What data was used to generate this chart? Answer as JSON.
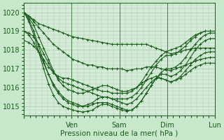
{
  "xlabel": "Pression niveau de la mer( hPa )",
  "background_color": "#c8e8cc",
  "plot_bg_color": "#d4ecd8",
  "line_color": "#1a5c1a",
  "marker": "+",
  "markersize": 3,
  "linewidth": 0.8,
  "ylim": [
    1014.5,
    1020.5
  ],
  "yticks": [
    1015,
    1016,
    1017,
    1018,
    1019,
    1020
  ],
  "grid_color": "#a8c8a8",
  "xtick_pos": [
    0.0,
    0.25,
    0.5,
    0.75,
    1.0
  ],
  "xtick_labels": [
    "",
    "Ven",
    "Sam",
    "Dim",
    "Lun"
  ],
  "series": [
    [
      1020.0,
      1019.8,
      1019.6,
      1019.4,
      1019.3,
      1019.2,
      1019.1,
      1019.0,
      1018.9,
      1018.8,
      1018.7,
      1018.65,
      1018.6,
      1018.55,
      1018.5,
      1018.45,
      1018.4,
      1018.35,
      1018.3,
      1018.3,
      1018.3,
      1018.3,
      1018.3,
      1018.3,
      1018.3,
      1018.3,
      1018.2,
      1018.1,
      1018.0,
      1017.9,
      1017.8,
      1017.85,
      1017.9,
      1018.0,
      1018.05,
      1018.1,
      1018.1,
      1018.1,
      1018.1,
      1018.1
    ],
    [
      1020.0,
      1019.8,
      1019.5,
      1019.2,
      1018.9,
      1018.6,
      1018.3,
      1018.1,
      1017.9,
      1017.7,
      1017.5,
      1017.4,
      1017.3,
      1017.2,
      1017.2,
      1017.1,
      1017.1,
      1017.0,
      1017.0,
      1017.0,
      1017.0,
      1016.9,
      1016.95,
      1017.0,
      1017.0,
      1017.1,
      1017.1,
      1017.1,
      1017.0,
      1016.95,
      1016.9,
      1017.0,
      1017.1,
      1017.2,
      1017.3,
      1017.4,
      1017.5,
      1017.55,
      1017.6,
      1017.6
    ],
    [
      1020.0,
      1019.7,
      1019.3,
      1018.7,
      1018.1,
      1017.5,
      1016.9,
      1016.4,
      1016.1,
      1015.9,
      1015.8,
      1015.7,
      1015.7,
      1015.8,
      1015.9,
      1016.0,
      1016.1,
      1016.1,
      1016.0,
      1015.9,
      1015.8,
      1015.8,
      1015.9,
      1016.0,
      1016.2,
      1016.4,
      1016.5,
      1016.6,
      1016.5,
      1016.4,
      1016.3,
      1016.4,
      1016.5,
      1016.7,
      1016.9,
      1017.1,
      1017.2,
      1017.3,
      1017.3,
      1017.3
    ],
    [
      1020.0,
      1019.6,
      1019.0,
      1018.2,
      1017.4,
      1016.7,
      1016.1,
      1015.7,
      1015.4,
      1015.2,
      1015.1,
      1015.0,
      1015.0,
      1015.1,
      1015.2,
      1015.4,
      1015.5,
      1015.5,
      1015.4,
      1015.3,
      1015.2,
      1015.1,
      1015.2,
      1015.4,
      1015.7,
      1016.0,
      1016.3,
      1016.5,
      1016.5,
      1016.4,
      1016.3,
      1016.4,
      1016.6,
      1016.9,
      1017.2,
      1017.5,
      1017.7,
      1017.85,
      1017.9,
      1017.9
    ],
    [
      1020.0,
      1019.5,
      1018.8,
      1017.9,
      1017.0,
      1016.2,
      1015.6,
      1015.2,
      1015.0,
      1014.9,
      1014.8,
      1014.75,
      1014.7,
      1014.75,
      1014.8,
      1015.0,
      1015.1,
      1015.1,
      1015.0,
      1014.9,
      1014.8,
      1014.75,
      1014.8,
      1015.0,
      1015.3,
      1015.7,
      1016.1,
      1016.5,
      1016.7,
      1016.7,
      1016.6,
      1016.7,
      1016.9,
      1017.2,
      1017.6,
      1018.0,
      1018.3,
      1018.5,
      1018.6,
      1018.6
    ],
    [
      1019.0,
      1018.8,
      1018.4,
      1017.9,
      1017.3,
      1016.7,
      1016.2,
      1015.8,
      1015.5,
      1015.3,
      1015.2,
      1015.1,
      1015.0,
      1015.0,
      1015.1,
      1015.2,
      1015.2,
      1015.2,
      1015.1,
      1015.0,
      1014.9,
      1014.8,
      1014.8,
      1015.0,
      1015.3,
      1015.7,
      1016.1,
      1016.5,
      1016.8,
      1017.0,
      1017.0,
      1017.1,
      1017.3,
      1017.6,
      1018.0,
      1018.3,
      1018.6,
      1018.8,
      1018.9,
      1018.9
    ],
    [
      1019.0,
      1018.9,
      1018.7,
      1018.3,
      1017.8,
      1017.3,
      1016.8,
      1016.5,
      1016.3,
      1016.2,
      1016.1,
      1016.0,
      1015.9,
      1015.8,
      1015.7,
      1015.6,
      1015.5,
      1015.5,
      1015.4,
      1015.4,
      1015.4,
      1015.4,
      1015.5,
      1015.7,
      1016.0,
      1016.4,
      1016.8,
      1017.2,
      1017.5,
      1017.7,
      1017.7,
      1017.8,
      1018.0,
      1018.2,
      1018.5,
      1018.7,
      1018.9,
      1019.0,
      1019.0,
      1019.0
    ],
    [
      1018.5,
      1018.4,
      1018.2,
      1017.9,
      1017.5,
      1017.1,
      1016.8,
      1016.6,
      1016.5,
      1016.5,
      1016.4,
      1016.3,
      1016.2,
      1016.1,
      1016.0,
      1015.9,
      1015.8,
      1015.8,
      1015.7,
      1015.7,
      1015.7,
      1015.7,
      1015.8,
      1016.0,
      1016.3,
      1016.7,
      1017.1,
      1017.4,
      1017.7,
      1017.9,
      1018.0,
      1018.1,
      1018.2,
      1018.4,
      1018.6,
      1018.8,
      1018.9,
      1019.0,
      1019.0,
      1019.0
    ]
  ]
}
